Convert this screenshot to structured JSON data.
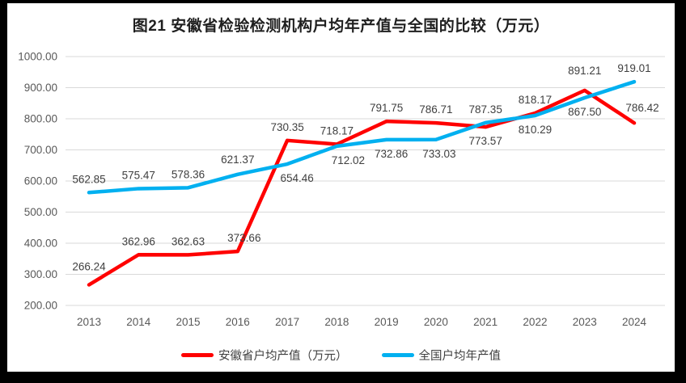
{
  "chart_data": {
    "type": "line",
    "title": "图21 安徽省检验检测机构户均年产值与全国的比较（万元）",
    "categories": [
      "2013",
      "2014",
      "2015",
      "2016",
      "2017",
      "2018",
      "2019",
      "2020",
      "2021",
      "2022",
      "2023",
      "2024"
    ],
    "series": [
      {
        "name": "安徽省户均产值（万元）",
        "color": "#FF0000",
        "values": [
          266.24,
          362.96,
          362.63,
          373.66,
          730.35,
          718.17,
          791.75,
          786.71,
          773.57,
          818.17,
          891.21,
          786.42
        ],
        "label_positions": [
          "above",
          "above",
          "above",
          "above",
          "above",
          "above",
          "above",
          "above",
          "below",
          "above",
          "above",
          "above"
        ]
      },
      {
        "name": "全国户均年产值",
        "color": "#00B0F0",
        "values": [
          562.85,
          575.47,
          578.36,
          621.37,
          654.46,
          712.02,
          732.86,
          733.03,
          787.35,
          810.29,
          867.5,
          919.01
        ],
        "label_positions": [
          "above",
          "above",
          "above",
          "above",
          "below",
          "below",
          "below",
          "below",
          "above",
          "below",
          "below",
          "above"
        ]
      }
    ],
    "ylim": [
      200,
      1000
    ],
    "ytick_step": 100,
    "value_decimals": 2,
    "grid": true,
    "legend_position": "bottom",
    "colors": {
      "grid": "#D9D9D9",
      "axis_text": "#595959",
      "data_label": "#3F3F3F",
      "title_text": "#1F1F1F",
      "plot_background": "#FFFFFF",
      "frame": "#000000"
    }
  }
}
